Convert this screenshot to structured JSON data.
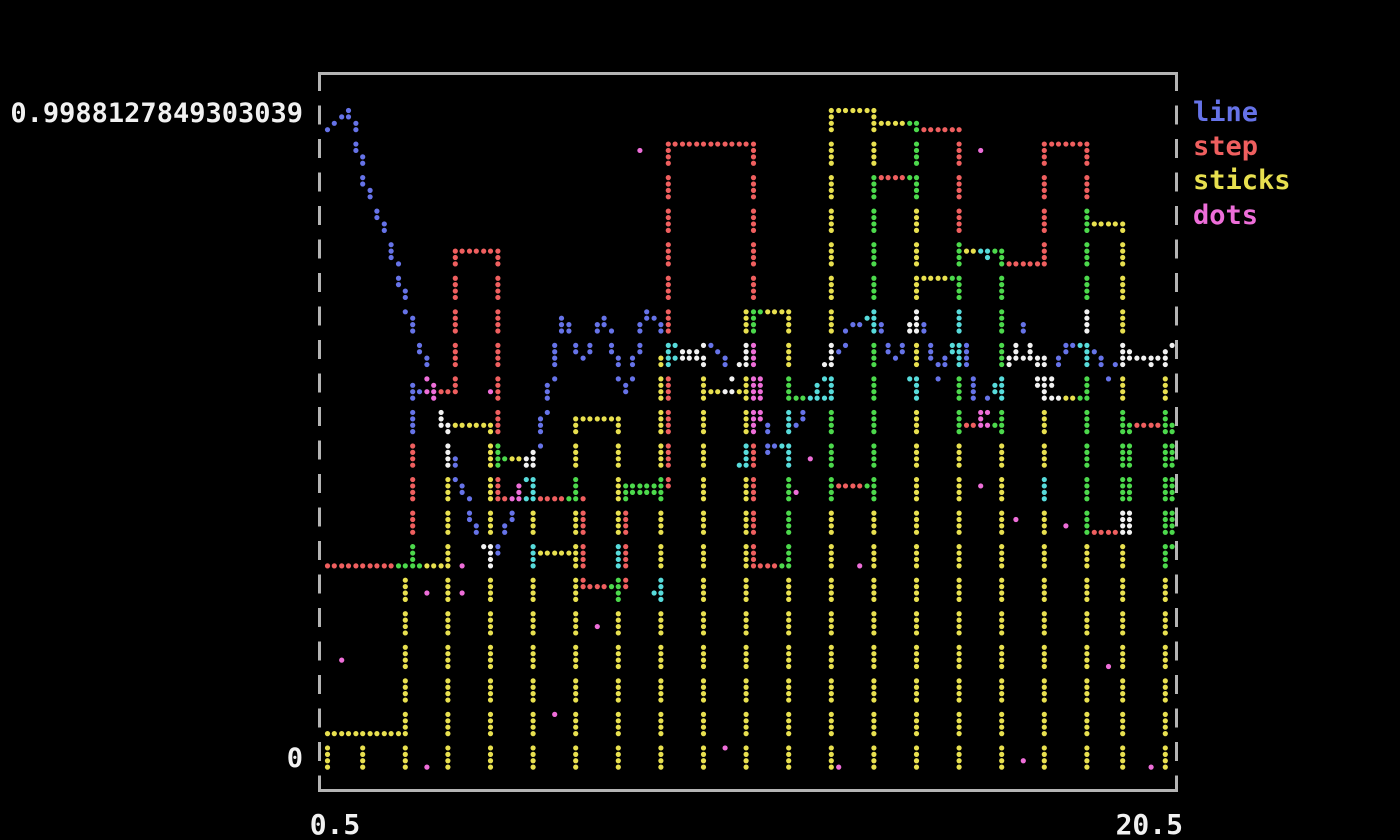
{
  "axis": {
    "y_max_label": "0.9988127849303039",
    "y_min_label": "0",
    "x_min_label": "0.5",
    "x_max_label": "20.5",
    "text_color": "#f1f1f1"
  },
  "frame": {
    "style": "dashed",
    "color": "#b4b4b4"
  },
  "legend": {
    "items": [
      {
        "label": "line",
        "color": "#6673e8"
      },
      {
        "label": "step",
        "color": "#ef5f5f"
      },
      {
        "label": "sticks",
        "color": "#e8e04f"
      },
      {
        "label": "dots",
        "color": "#ee6ed9"
      }
    ]
  },
  "chart_data": {
    "type": "line",
    "subtype": "terminal-braille-multiseries",
    "xlim": [
      0.5,
      20.5
    ],
    "ylim": [
      0,
      0.9988127849303039
    ],
    "grid": false,
    "legend_position": "right-outside",
    "series": [
      {
        "name": "line",
        "style": "line",
        "color": "#6673e8",
        "ansi": 4,
        "x": [
          0.5,
          1,
          1.5,
          2,
          2.5,
          3,
          3.5,
          4,
          4.5,
          5,
          5.5,
          6,
          6.5,
          7,
          7.5,
          8,
          8.5,
          9,
          9.5,
          10,
          10.5,
          11,
          11.5,
          12,
          12.5,
          13,
          13.5,
          14,
          14.5,
          15,
          15.5,
          16,
          16.5,
          17,
          17.5,
          18,
          18.5,
          19,
          19.5,
          20,
          20.5
        ],
        "y": [
          0.96,
          0.9988127849303039,
          0.86,
          0.78,
          0.665,
          0.57,
          0.45,
          0.36,
          0.33,
          0.42,
          0.5,
          0.68,
          0.62,
          0.68,
          0.57,
          0.7,
          0.64,
          0.63,
          0.65,
          0.6,
          0.64,
          0.48,
          0.5,
          0.56,
          0.62,
          0.67,
          0.685,
          0.62,
          0.7,
          0.59,
          0.67,
          0.53,
          0.6,
          0.67,
          0.56,
          0.65,
          0.645,
          0.6,
          0.63,
          0.61,
          0.645
        ]
      },
      {
        "name": "step",
        "style": "step",
        "color": "#ef5f5f",
        "ansi": 1,
        "x": [
          0.5,
          1.5,
          2.5,
          3.5,
          4.5,
          5.5,
          6.5,
          7.5,
          8.5,
          9.5,
          10.5,
          11.5,
          12.5,
          13.5,
          14.5,
          15.5,
          16.5,
          17.5,
          18.5,
          19.5,
          20.5
        ],
        "y": [
          0.3,
          0.3,
          0.565,
          0.785,
          0.4,
          0.4,
          0.28,
          0.43,
          0.946,
          0.946,
          0.3,
          0.56,
          0.43,
          0.9,
          0.958,
          0.52,
          0.76,
          0.946,
          0.36,
          0.52,
          0.34
        ]
      },
      {
        "name": "sticks",
        "style": "bars",
        "color": "#e8e04f",
        "ansi": 3,
        "bar_width": 1.0,
        "x": [
          0.9,
          1.9,
          2.9,
          3.9,
          4.9,
          5.9,
          6.9,
          7.9,
          8.9,
          9.9,
          10.9,
          11.9,
          12.9,
          13.9,
          14.9,
          15.9,
          16.9,
          17.9,
          18.9,
          19.9
        ],
        "y": [
          0.046,
          0.046,
          0.3,
          0.52,
          0.47,
          0.33,
          0.53,
          0.42,
          0.62,
          0.57,
          0.69,
          0.55,
          0.9988127849303039,
          0.97,
          0.75,
          0.78,
          0.62,
          0.55,
          0.828,
          0.62
        ]
      },
      {
        "name": "dots",
        "style": "scatter",
        "color": "#ee6ed9",
        "ansi": 5,
        "points": [
          [
            0.9,
            0.17
          ],
          [
            2.5,
            0.58
          ],
          [
            2.55,
            0.545
          ],
          [
            2.8,
            0.27
          ],
          [
            2.9,
            0.005
          ],
          [
            3.65,
            0.3
          ],
          [
            3.7,
            0.26
          ],
          [
            4.4,
            0.565
          ],
          [
            5.35,
            0.33
          ],
          [
            5.9,
            0.088
          ],
          [
            6.9,
            0.218
          ],
          [
            7.35,
            0.33
          ],
          [
            7.9,
            0.935
          ],
          [
            8.2,
            0.27
          ],
          [
            9.9,
            0.037
          ],
          [
            10.3,
            0.45
          ],
          [
            11.6,
            0.42
          ],
          [
            11.95,
            0.47
          ],
          [
            12.6,
            0.002
          ],
          [
            13.1,
            0.3
          ],
          [
            14.2,
            0.6
          ],
          [
            15.9,
            0.932
          ],
          [
            15.9,
            0.425
          ],
          [
            16.1,
            0.775
          ],
          [
            16.8,
            0.375
          ],
          [
            16.95,
            0.01
          ],
          [
            17.4,
            0.42
          ],
          [
            17.98,
            0.37
          ],
          [
            18.5,
            0.67
          ],
          [
            19.0,
            0.158
          ],
          [
            19.3,
            0.36
          ],
          [
            20.0,
            0.002
          ]
        ]
      }
    ],
    "render": {
      "color_mixing": "xor-of-ansi-codes-per-cell",
      "palette": {
        "1": "#ef5f5f",
        "2": "#4cd94c",
        "3": "#e8e04f",
        "4": "#6673e8",
        "5": "#ee6ed9",
        "6": "#57dbdb",
        "7": "#f2f2f2"
      }
    }
  }
}
